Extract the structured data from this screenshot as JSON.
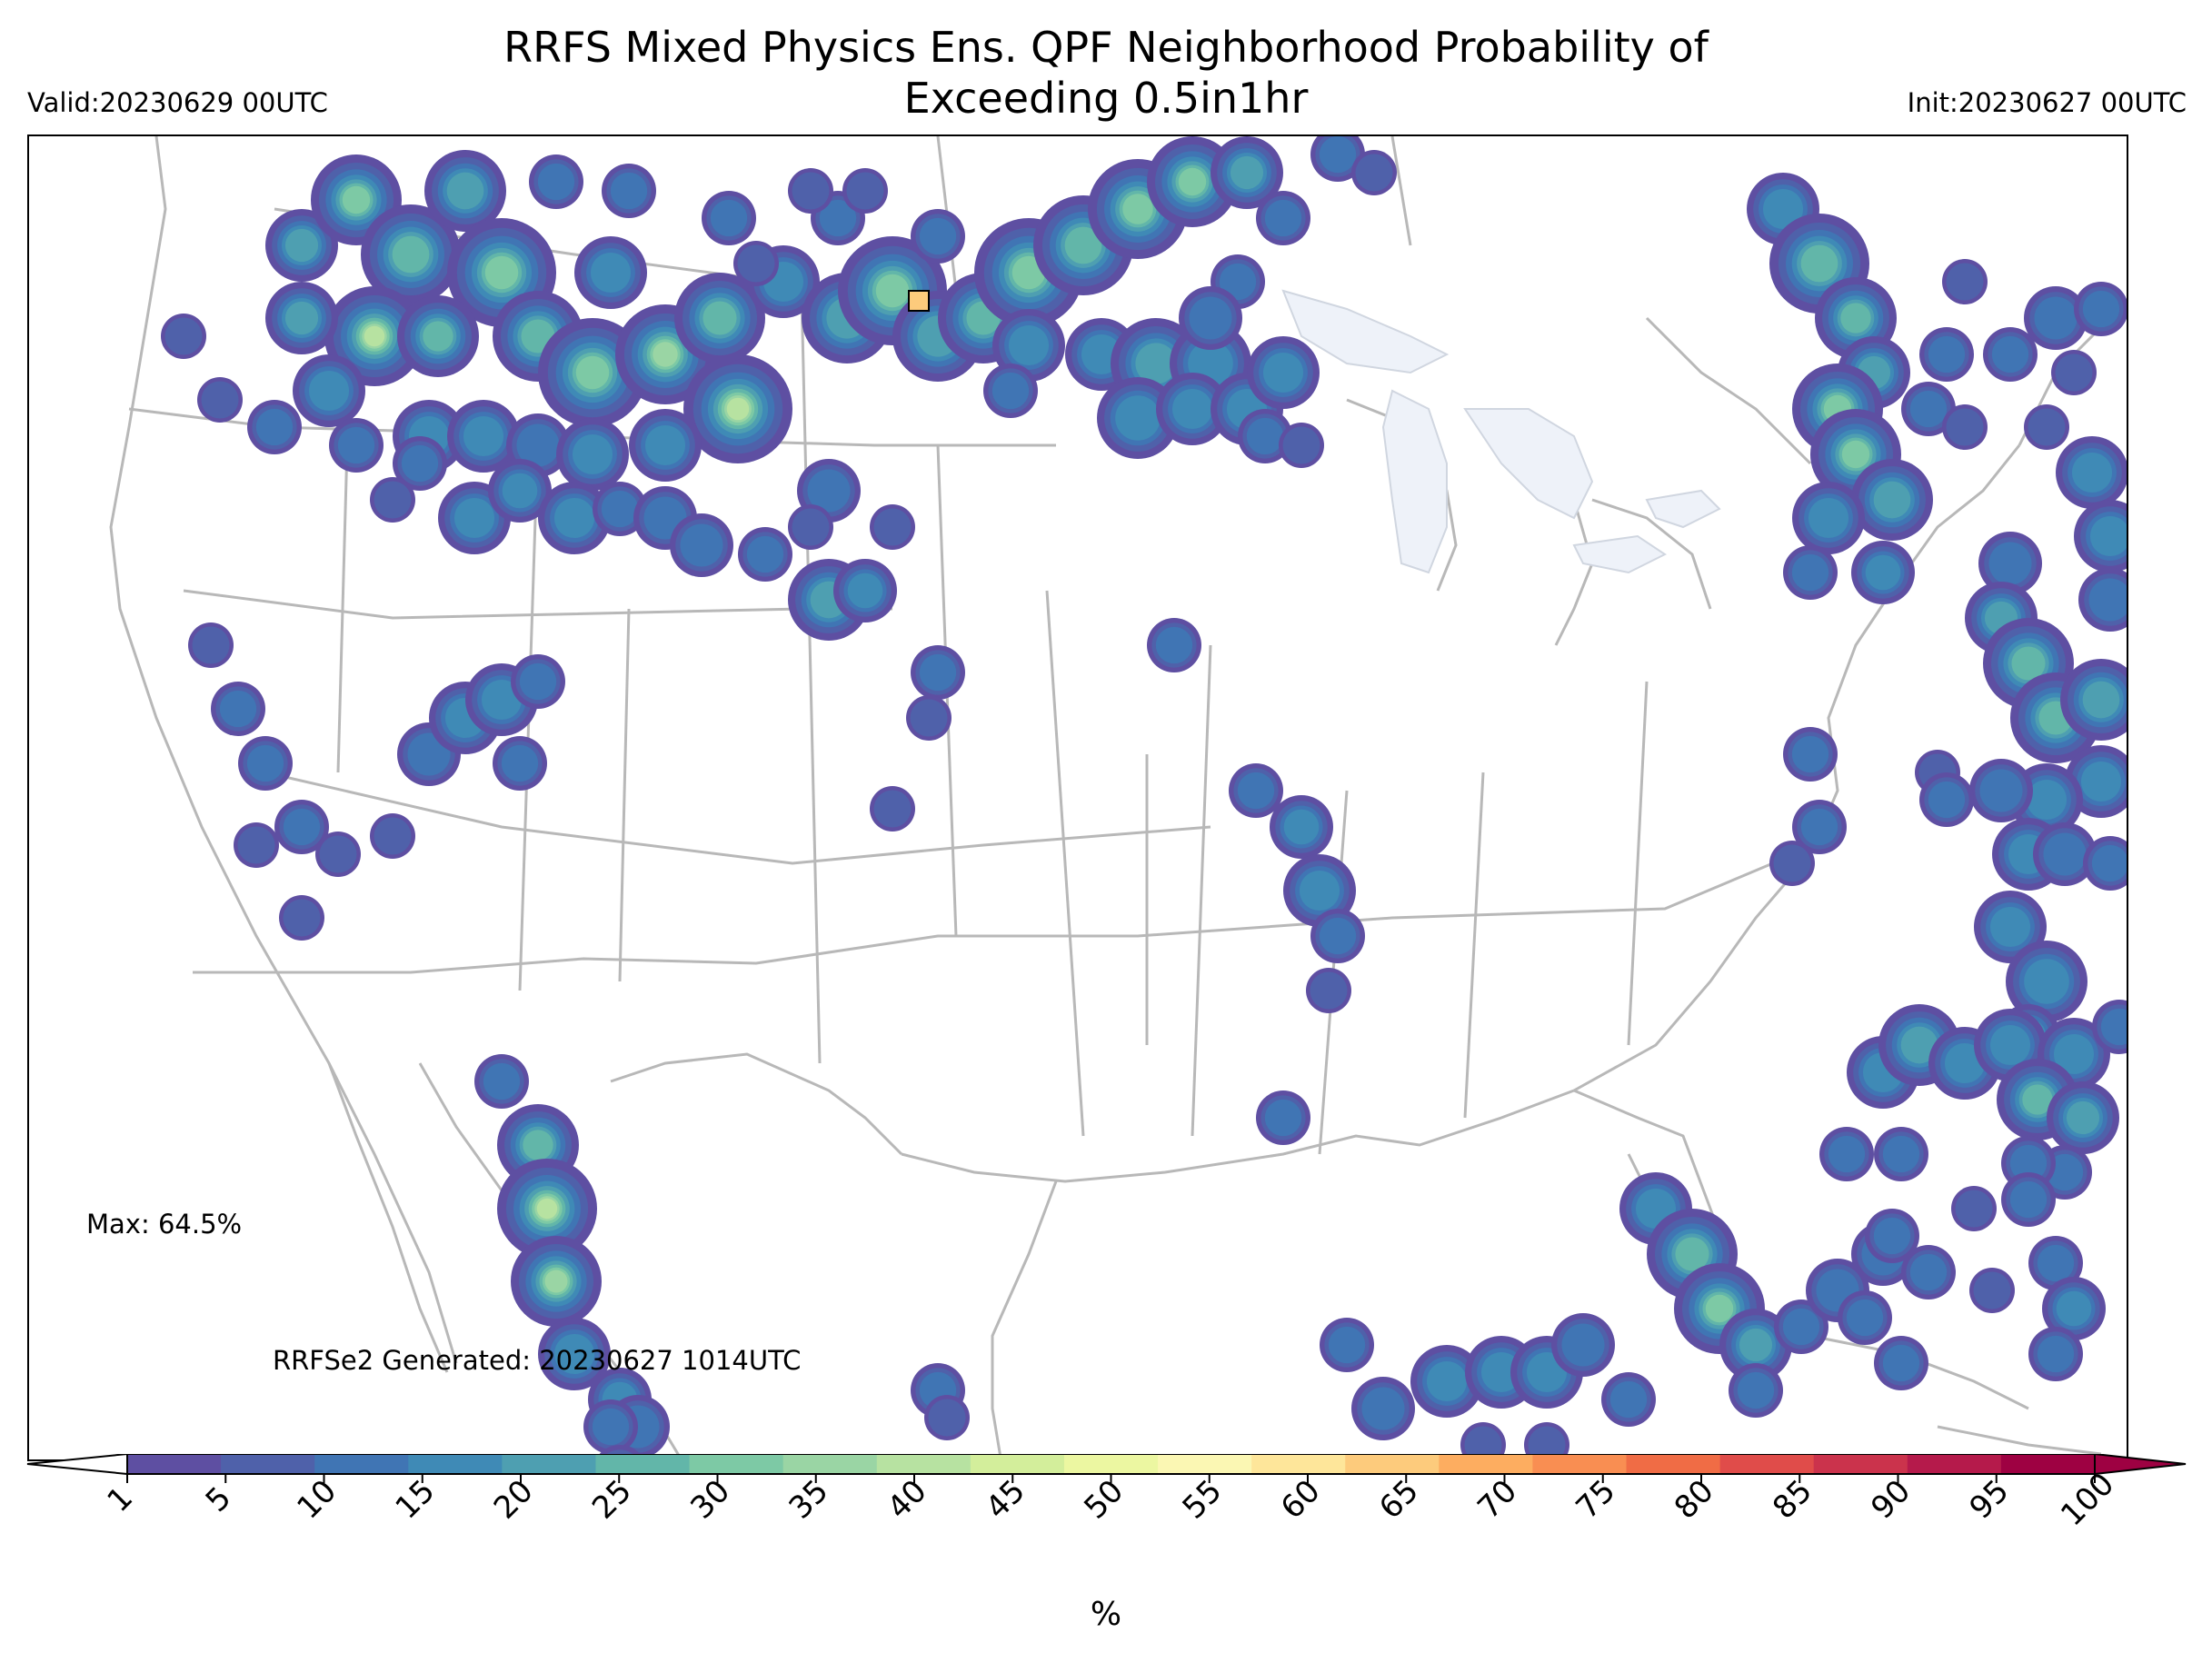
{
  "title": {
    "line1": "RRFS Mixed Physics Ens. QPF Neighborhood Probability of",
    "line2": "Exceeding 0.5in1hr"
  },
  "valid": "Valid:20230629 00UTC",
  "init": "Init:20230627 00UTC",
  "max_label": "Max: 64.5%",
  "generated_label": "RRFSe2 Generated: 20230627 1014UTC",
  "colorbar": {
    "unit": "%",
    "ticks": [
      "1",
      "5",
      "10",
      "15",
      "20",
      "25",
      "30",
      "35",
      "40",
      "45",
      "50",
      "55",
      "60",
      "65",
      "70",
      "75",
      "80",
      "85",
      "90",
      "95",
      "100"
    ],
    "colors": [
      "#5e4fa2",
      "#4f61aa",
      "#4075b4",
      "#3f8ab6",
      "#4e9fb1",
      "#62b6a9",
      "#7dc9a5",
      "#9ad5a4",
      "#b7e2a1",
      "#d3ee9b",
      "#ecf7a1",
      "#fbf7b3",
      "#fee69a",
      "#fdcb7c",
      "#fdad60",
      "#f98e52",
      "#f06c45",
      "#e04c4a",
      "#cb334c",
      "#b51a4b",
      "#9e0142"
    ],
    "under_color": "#ffffff",
    "over_color": "#9e0142"
  },
  "map": {
    "max_value_percent": 64.5,
    "state_line_color": "#b8b8b8",
    "lake_fill": "#eef2f9"
  }
}
